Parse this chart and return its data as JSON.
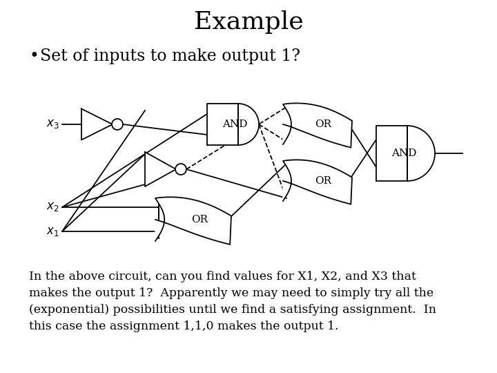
{
  "title": "Example",
  "bullet": "Set of inputs to make output 1?",
  "paragraph": "In the above circuit, can you find values for X1, X2, and X3 that\nmakes the output 1?  Apparently we may need to simply try all the\n(exponential) possibilities until we find a satisfying assignment.  In\nthis case the assignment 1,1,0 makes the output 1.",
  "bg_color": "#ffffff",
  "line_color": "#000000",
  "font_color": "#000000",
  "title_fontsize": 26,
  "bullet_fontsize": 17,
  "body_fontsize": 12.5,
  "label_fontsize": 11
}
